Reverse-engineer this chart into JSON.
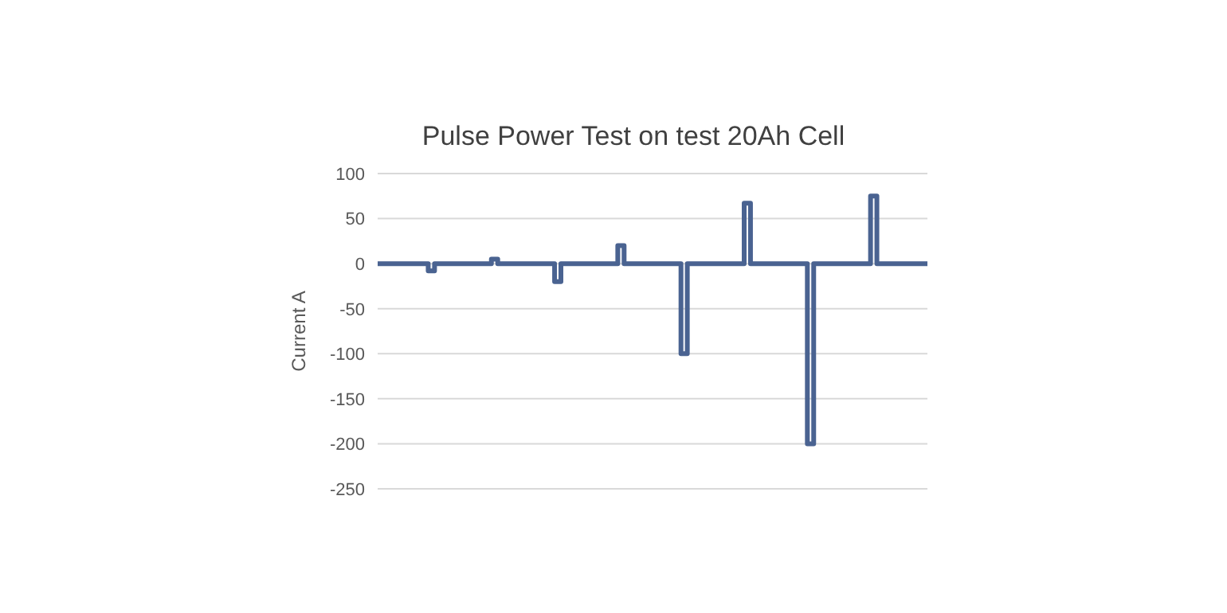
{
  "chart_data": {
    "type": "step",
    "title": "Pulse Power Test on test 20Ah Cell",
    "ylabel": "Current A",
    "categories": [
      null,
      null,
      null,
      null,
      null,
      null,
      null,
      null,
      null,
      null,
      null,
      null,
      null,
      null,
      null,
      null,
      null,
      null,
      null,
      null,
      null,
      null,
      null,
      null,
      null,
      null,
      null,
      null,
      null,
      null,
      null,
      null,
      null,
      null,
      null,
      null,
      null,
      null,
      null,
      null,
      null,
      null,
      null,
      null,
      null,
      null,
      null,
      null,
      null,
      null,
      null,
      null,
      null,
      null,
      null,
      null,
      null,
      null,
      null,
      null,
      null,
      null,
      null,
      null,
      null,
      null,
      null,
      null,
      null,
      null,
      null,
      null,
      null,
      null,
      null,
      null,
      null,
      null,
      null,
      null,
      null,
      null,
      null,
      null,
      null,
      null,
      null,
      null
    ],
    "series": [
      {
        "color": "#4a6391",
        "values": [
          0,
          0,
          0,
          0,
          0,
          0,
          0,
          0,
          -8,
          0,
          0,
          0,
          0,
          0,
          0,
          0,
          0,
          0,
          5,
          0,
          0,
          0,
          0,
          0,
          0,
          0,
          0,
          0,
          -20,
          0,
          0,
          0,
          0,
          0,
          0,
          0,
          0,
          0,
          20,
          0,
          0,
          0,
          0,
          0,
          0,
          0,
          0,
          0,
          -100,
          0,
          0,
          0,
          0,
          0,
          0,
          0,
          0,
          0,
          67,
          0,
          0,
          0,
          0,
          0,
          0,
          0,
          0,
          0,
          -200,
          0,
          0,
          0,
          0,
          0,
          0,
          0,
          0,
          0,
          75,
          0,
          0,
          0,
          0,
          0,
          0,
          0,
          0,
          0
        ]
      }
    ],
    "ylim": [
      -250,
      100
    ],
    "yticks": [
      -250,
      -200,
      -150,
      -100,
      -50,
      0,
      50,
      100
    ],
    "grid": "y",
    "tick_labels": "y",
    "legend": false,
    "marker": "none",
    "line_style": "solid"
  }
}
